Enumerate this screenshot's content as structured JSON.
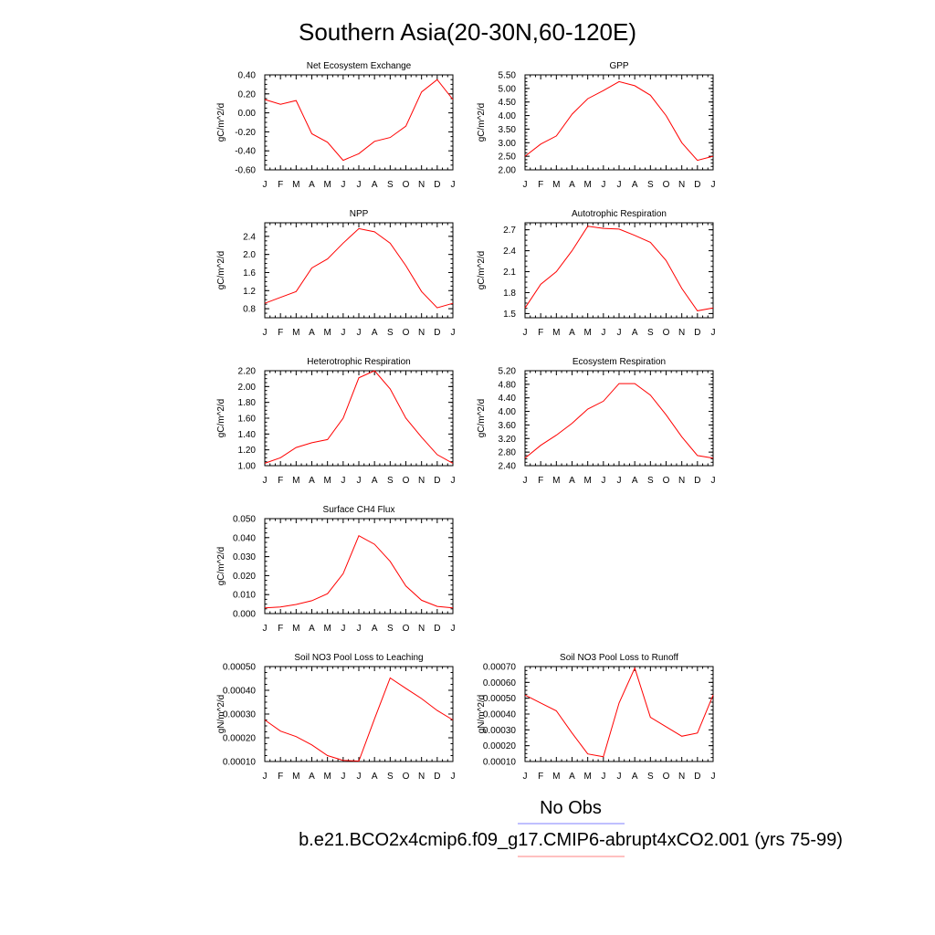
{
  "title": "Southern Asia(20-30N,60-120E)",
  "legend": {
    "entries": [
      {
        "label": "No Obs",
        "color": "#8080ff"
      },
      {
        "label": "b.e21.BCO2x4cmip6.f09_g17.CMIP6-abrupt4xCO2.001 (yrs 75-99)",
        "color": "#ff8080"
      }
    ]
  },
  "chart_data": [
    {
      "type": "line",
      "title": "Net Ecosystem Exchange",
      "ylabel": "gC/m^2/d",
      "x": [
        "J",
        "F",
        "M",
        "A",
        "M",
        "J",
        "J",
        "A",
        "S",
        "O",
        "N",
        "D",
        "J"
      ],
      "ylim": [
        -0.6,
        0.4
      ],
      "yticks": [
        "-0.60",
        "-0.40",
        "-0.20",
        "0.00",
        "0.20",
        "0.40"
      ],
      "series": [
        {
          "color": "#ff0000",
          "values": [
            0.14,
            0.09,
            0.13,
            -0.22,
            -0.31,
            -0.5,
            -0.43,
            -0.3,
            -0.26,
            -0.14,
            0.22,
            0.35,
            0.14
          ]
        }
      ]
    },
    {
      "type": "line",
      "title": "GPP",
      "ylabel": "gC/m^2/d",
      "x": [
        "J",
        "F",
        "M",
        "A",
        "M",
        "J",
        "J",
        "A",
        "S",
        "O",
        "N",
        "D",
        "J"
      ],
      "ylim": [
        2.0,
        5.5
      ],
      "yticks": [
        "2.00",
        "2.50",
        "3.00",
        "3.50",
        "4.00",
        "4.50",
        "5.00",
        "5.50"
      ],
      "series": [
        {
          "color": "#ff0000",
          "values": [
            2.5,
            2.95,
            3.25,
            4.05,
            4.62,
            4.92,
            5.25,
            5.1,
            4.75,
            4.0,
            3.0,
            2.35,
            2.5
          ]
        }
      ]
    },
    {
      "type": "line",
      "title": "NPP",
      "ylabel": "gC/m^2/d",
      "x": [
        "J",
        "F",
        "M",
        "A",
        "M",
        "J",
        "J",
        "A",
        "S",
        "O",
        "N",
        "D",
        "J"
      ],
      "ylim": [
        0.6,
        2.7
      ],
      "yticks": [
        "0.8",
        "1.2",
        "1.6",
        "2.0",
        "2.4"
      ],
      "series": [
        {
          "color": "#ff0000",
          "values": [
            0.92,
            1.05,
            1.18,
            1.7,
            1.9,
            2.25,
            2.57,
            2.5,
            2.25,
            1.75,
            1.18,
            0.82,
            0.92
          ]
        }
      ]
    },
    {
      "type": "line",
      "title": "Autotrophic Respiration",
      "ylabel": "gC/m^2/d",
      "x": [
        "J",
        "F",
        "M",
        "A",
        "M",
        "J",
        "J",
        "A",
        "S",
        "O",
        "N",
        "D",
        "J"
      ],
      "ylim": [
        1.44,
        2.8
      ],
      "yticks": [
        "1.5",
        "1.8",
        "2.1",
        "2.4",
        "2.7"
      ],
      "series": [
        {
          "color": "#ff0000",
          "values": [
            1.58,
            1.92,
            2.1,
            2.4,
            2.75,
            2.72,
            2.71,
            2.62,
            2.52,
            2.26,
            1.86,
            1.54,
            1.58
          ]
        }
      ]
    },
    {
      "type": "line",
      "title": "Heterotrophic Respiration",
      "ylabel": "gC/m^2/d",
      "x": [
        "J",
        "F",
        "M",
        "A",
        "M",
        "J",
        "J",
        "A",
        "S",
        "O",
        "N",
        "D",
        "J"
      ],
      "ylim": [
        1.0,
        2.2
      ],
      "yticks": [
        "1.00",
        "1.20",
        "1.40",
        "1.60",
        "1.80",
        "2.00",
        "2.20"
      ],
      "series": [
        {
          "color": "#ff0000",
          "values": [
            1.03,
            1.1,
            1.23,
            1.29,
            1.33,
            1.6,
            2.11,
            2.2,
            1.97,
            1.6,
            1.36,
            1.14,
            1.03
          ]
        }
      ]
    },
    {
      "type": "line",
      "title": "Ecosystem Respiration",
      "ylabel": "gC/m^2/d",
      "x": [
        "J",
        "F",
        "M",
        "A",
        "M",
        "J",
        "J",
        "A",
        "S",
        "O",
        "N",
        "D",
        "J"
      ],
      "ylim": [
        2.4,
        5.2
      ],
      "yticks": [
        "2.40",
        "2.80",
        "3.20",
        "3.60",
        "4.00",
        "4.40",
        "4.80",
        "5.20"
      ],
      "series": [
        {
          "color": "#ff0000",
          "values": [
            2.62,
            3.0,
            3.3,
            3.65,
            4.07,
            4.3,
            4.82,
            4.82,
            4.48,
            3.9,
            3.25,
            2.7,
            2.62
          ]
        }
      ]
    },
    {
      "type": "line",
      "title": "Surface CH4 Flux",
      "ylabel": "gC/m^2/d",
      "x": [
        "J",
        "F",
        "M",
        "A",
        "M",
        "J",
        "J",
        "A",
        "S",
        "O",
        "N",
        "D",
        "J"
      ],
      "ylim": [
        0.0,
        0.05
      ],
      "yticks": [
        "0.000",
        "0.010",
        "0.020",
        "0.030",
        "0.040",
        "0.050"
      ],
      "series": [
        {
          "color": "#ff0000",
          "values": [
            0.003,
            0.0035,
            0.0048,
            0.0068,
            0.0105,
            0.021,
            0.041,
            0.0365,
            0.0275,
            0.0145,
            0.007,
            0.0038,
            0.003
          ]
        }
      ]
    },
    {
      "type": "line",
      "title": "Soil NO3 Pool Loss to Leaching",
      "ylabel": "gN/m^2/d",
      "x": [
        "J",
        "F",
        "M",
        "A",
        "M",
        "J",
        "J",
        "A",
        "S",
        "O",
        "N",
        "D",
        "J"
      ],
      "ylim": [
        0.0001,
        0.0005
      ],
      "yticks": [
        "0.00010",
        "0.00020",
        "0.00030",
        "0.00040",
        "0.00050"
      ],
      "series": [
        {
          "color": "#ff0000",
          "values": [
            0.000275,
            0.000228,
            0.000205,
            0.00017,
            0.000125,
            0.000105,
            0.000102,
            0.00028,
            0.000452,
            0.000408,
            0.000365,
            0.000315,
            0.000275
          ]
        }
      ]
    },
    {
      "type": "line",
      "title": "Soil NO3 Pool Loss to Runoff",
      "ylabel": "gN/m^2/d",
      "x": [
        "J",
        "F",
        "M",
        "A",
        "M",
        "J",
        "J",
        "A",
        "S",
        "O",
        "N",
        "D",
        "J"
      ],
      "ylim": [
        0.0001,
        0.0007
      ],
      "yticks": [
        "0.00010",
        "0.00020",
        "0.00030",
        "0.00040",
        "0.00050",
        "0.00060",
        "0.00070"
      ],
      "series": [
        {
          "color": "#ff0000",
          "values": [
            0.00052,
            0.00047,
            0.00042,
            0.00028,
            0.000148,
            0.00013,
            0.00047,
            0.00069,
            0.00038,
            0.00032,
            0.00026,
            0.00028,
            0.00052
          ]
        }
      ]
    }
  ]
}
